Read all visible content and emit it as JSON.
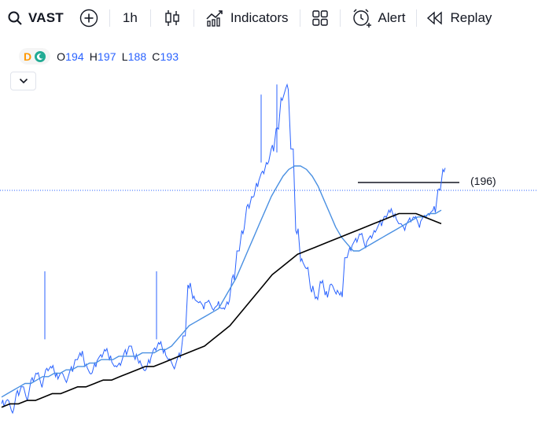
{
  "toolbar": {
    "symbol": "VAST",
    "timeframe": "1h",
    "indicators_label": "Indicators",
    "alert_label": "Alert",
    "replay_label": "Replay",
    "icons": [
      "search-icon",
      "add-symbol-icon",
      "candles-icon",
      "indicators-icon",
      "layout-icon",
      "alert-icon",
      "replay-icon"
    ]
  },
  "legend": {
    "badge_letter": "D",
    "open_key": "O",
    "open": "194",
    "high_key": "H",
    "high": "197",
    "low_key": "L",
    "low": "188",
    "close_key": "C",
    "close": "193"
  },
  "chart": {
    "price_level_label": "(196)",
    "colors": {
      "price_line": "#2962ff",
      "fast_ma": "#4a90e2",
      "slow_ma": "#000000",
      "horizontal_line": "#131722",
      "dotted_line": "#2962ff"
    }
  },
  "chart_data": {
    "type": "line",
    "series": [
      {
        "values": [
          0.05,
          0.06,
          0.03,
          0.08,
          0.1,
          0.07,
          0.12,
          0.14,
          0.11,
          0.15,
          0.16,
          0.13,
          0.14,
          0.12,
          0.15,
          0.18,
          0.2,
          0.16,
          0.14,
          0.17,
          0.19,
          0.21,
          0.18,
          0.16,
          0.17,
          0.2,
          0.22,
          0.19,
          0.17,
          0.15,
          0.18,
          0.21,
          0.23,
          0.2,
          0.18,
          0.16,
          0.19,
          0.25,
          0.4,
          0.36,
          0.35,
          0.34,
          0.35,
          0.33,
          0.34,
          0.33,
          0.35,
          0.42,
          0.5,
          0.56,
          0.63,
          0.66,
          0.7,
          0.73,
          0.76,
          0.8,
          0.86,
          0.95,
          0.98,
          0.8,
          0.56,
          0.47,
          0.45,
          0.39,
          0.36,
          0.41,
          0.37,
          0.4,
          0.38,
          0.37,
          0.48,
          0.51,
          0.53,
          0.55,
          0.52,
          0.54,
          0.56,
          0.58,
          0.6,
          0.62,
          0.6,
          0.58,
          0.57,
          0.59,
          0.6,
          0.58,
          0.6,
          0.61,
          0.62,
          0.68,
          0.74
        ]
      },
      {
        "values": [
          0.07,
          0.08,
          0.09,
          0.1,
          0.11,
          0.11,
          0.12,
          0.13,
          0.13,
          0.14,
          0.14,
          0.15,
          0.15,
          0.16,
          0.16,
          0.17,
          0.17,
          0.18,
          0.18,
          0.18,
          0.19,
          0.19,
          0.19,
          0.19,
          0.2,
          0.2,
          0.2,
          0.21,
          0.21,
          0.22,
          0.24,
          0.26,
          0.28,
          0.29,
          0.3,
          0.31,
          0.32,
          0.33,
          0.36,
          0.39,
          0.42,
          0.46,
          0.5,
          0.54,
          0.58,
          0.62,
          0.66,
          0.69,
          0.72,
          0.74,
          0.75,
          0.75,
          0.74,
          0.72,
          0.69,
          0.65,
          0.61,
          0.57,
          0.54,
          0.52,
          0.5,
          0.5,
          0.51,
          0.52,
          0.53,
          0.54,
          0.55,
          0.56,
          0.57,
          0.58,
          0.59,
          0.6,
          0.6,
          0.61,
          0.61,
          0.62
        ]
      },
      {
        "values": [
          0.04,
          0.05,
          0.05,
          0.06,
          0.06,
          0.07,
          0.08,
          0.08,
          0.09,
          0.1,
          0.1,
          0.11,
          0.12,
          0.12,
          0.13,
          0.14,
          0.15,
          0.16,
          0.16,
          0.17,
          0.18,
          0.19,
          0.2,
          0.21,
          0.22,
          0.24,
          0.26,
          0.28,
          0.31,
          0.34,
          0.37,
          0.4,
          0.43,
          0.45,
          0.47,
          0.49,
          0.5,
          0.51,
          0.52,
          0.53,
          0.54,
          0.55,
          0.56,
          0.57,
          0.58,
          0.59,
          0.6,
          0.61,
          0.61,
          0.61,
          0.6,
          0.59,
          0.58
        ]
      }
    ],
    "horizontal_level": "(196)"
  }
}
